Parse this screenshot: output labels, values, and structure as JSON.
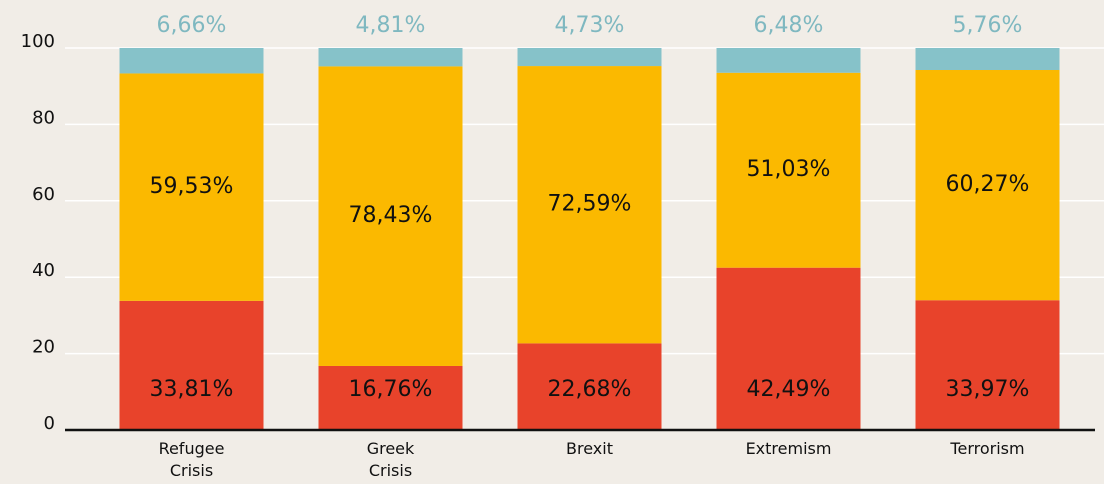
{
  "chart_data": {
    "type": "stacked_bar",
    "categories": [
      "Refugee Crisis",
      "Greek Crisis",
      "Brexit",
      "Extremism",
      "Terrorism"
    ],
    "series": [
      {
        "color": "#e8432b",
        "values": [
          33.81,
          16.76,
          22.68,
          42.49,
          33.97
        ],
        "value_labels": [
          "33,81%",
          "16,76%",
          "22,68%",
          "42,49%",
          "33,97%"
        ]
      },
      {
        "color": "#fbb900",
        "values": [
          59.53,
          78.43,
          72.59,
          51.03,
          60.27
        ],
        "value_labels": [
          "59,53%",
          "78,43%",
          "72,59%",
          "51,03%",
          "60,27%"
        ]
      },
      {
        "color": "#86c2c9",
        "values": [
          6.66,
          4.81,
          4.73,
          6.48,
          5.76
        ],
        "value_labels": [
          "6,66%",
          "4,81%",
          "4,73%",
          "6,48%",
          "5,76%"
        ]
      }
    ],
    "ylim": [
      0,
      100
    ],
    "yticks": [
      0,
      20,
      40,
      60,
      80,
      100
    ],
    "grid": true
  }
}
